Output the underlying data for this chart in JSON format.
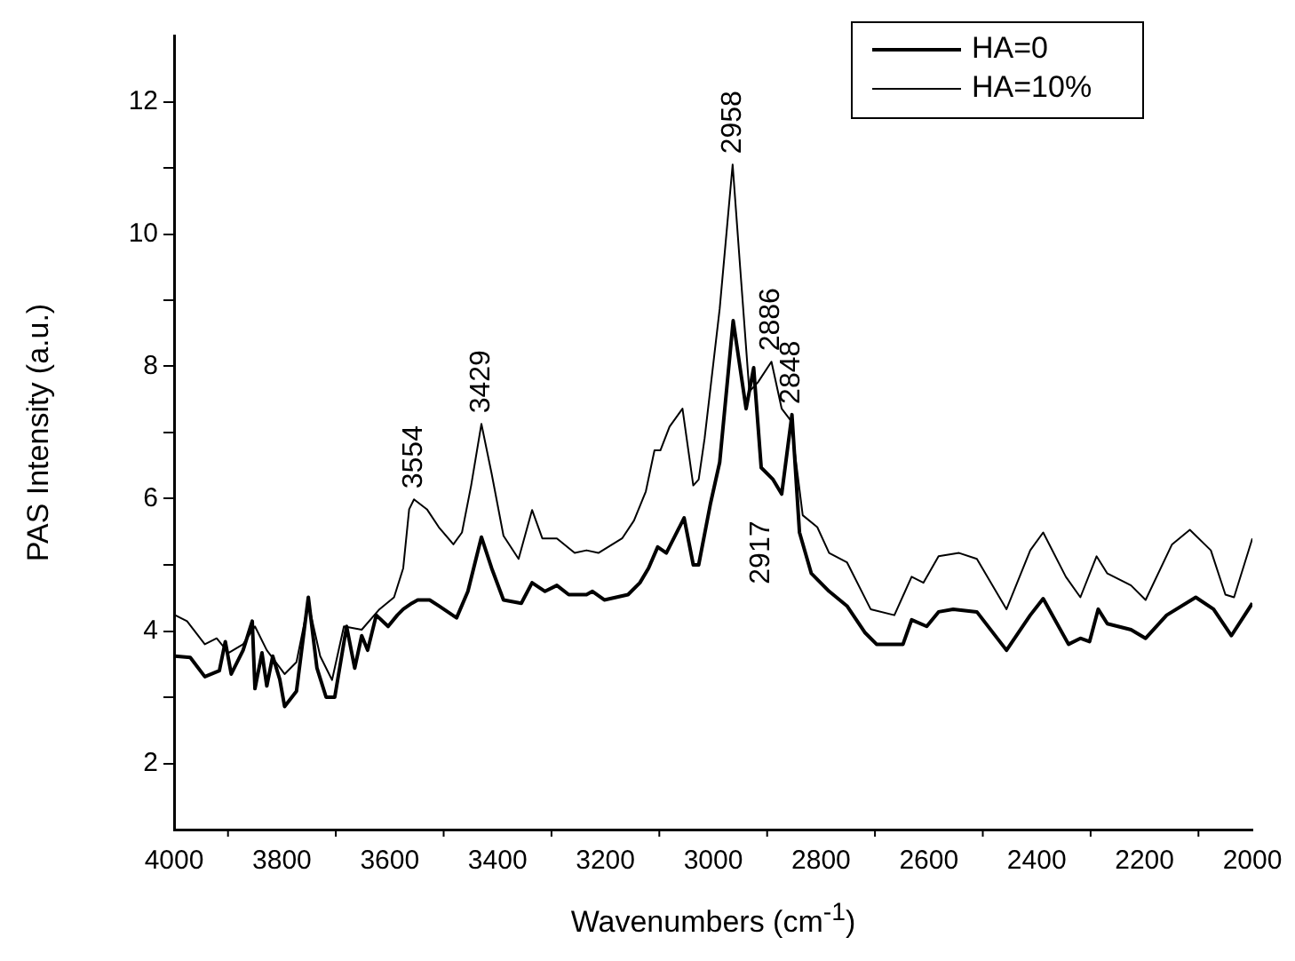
{
  "chart_data": {
    "type": "line",
    "xlabel": "Wavenumbers (cm$^{-1}$)",
    "ylabel": "PAS Intensity (a.u.)",
    "xlim": [
      4000,
      2000
    ],
    "xticks": [
      4000,
      {
        "value": 3900,
        "label": null
      },
      3800,
      {
        "value": 3700,
        "label": null
      },
      3600,
      {
        "value": 3500,
        "label": null
      },
      3400,
      {
        "value": 3300,
        "label": null
      },
      3200,
      {
        "value": 3100,
        "label": null
      },
      3000,
      {
        "value": 2900,
        "label": null
      },
      2800,
      {
        "value": 2700,
        "label": null
      },
      2600,
      {
        "value": 2500,
        "label": null
      },
      2400,
      {
        "value": 2300,
        "label": null
      },
      2200,
      {
        "value": 2100,
        "label": null
      },
      2000
    ],
    "ylim": [
      1,
      13
    ],
    "yticks": [
      2,
      {
        "value": 3,
        "label": null
      },
      4,
      {
        "value": 5,
        "label": null
      },
      6,
      {
        "value": 7,
        "label": null
      },
      8,
      {
        "value": 9,
        "label": null
      },
      10,
      {
        "value": 11,
        "label": null
      },
      12
    ],
    "grid": false,
    "legend": "top right",
    "marker": "none",
    "line_style": "solid",
    "series": [
      {
        "name": "HA=0",
        "color": "#000000",
        "x": [
          3998,
          3970,
          3943,
          3916,
          3905,
          3894,
          3872,
          3855,
          3850,
          3837,
          3828,
          3817,
          3804,
          3795,
          3773,
          3751,
          3735,
          3718,
          3702,
          3680,
          3665,
          3652,
          3641,
          3625,
          3603,
          3586,
          3575,
          3559,
          3548,
          3526,
          3509,
          3476,
          3455,
          3430,
          3411,
          3389,
          3356,
          3336,
          3312,
          3290,
          3268,
          3235,
          3224,
          3202,
          3158,
          3136,
          3120,
          3103,
          3087,
          3054,
          3037,
          3027,
          3005,
          2988,
          2963,
          2939,
          2925,
          2911,
          2889,
          2873,
          2854,
          2840,
          2818,
          2785,
          2752,
          2719,
          2697,
          2648,
          2632,
          2604,
          2582,
          2555,
          2511,
          2456,
          2412,
          2388,
          2341,
          2319,
          2302,
          2286,
          2269,
          2225,
          2198,
          2159,
          2105,
          2072,
          2039,
          2000
        ],
        "values": [
          3.62,
          3.6,
          3.31,
          3.4,
          3.84,
          3.35,
          3.71,
          4.15,
          3.13,
          3.67,
          3.17,
          3.62,
          3.27,
          2.86,
          3.09,
          4.51,
          3.44,
          3.0,
          3.0,
          4.07,
          3.44,
          3.93,
          3.71,
          4.24,
          4.07,
          4.24,
          4.33,
          4.42,
          4.47,
          4.47,
          4.38,
          4.2,
          4.6,
          5.42,
          4.95,
          4.47,
          4.42,
          4.73,
          4.6,
          4.69,
          4.55,
          4.55,
          4.6,
          4.47,
          4.55,
          4.73,
          4.95,
          5.27,
          5.18,
          5.71,
          5.0,
          5.0,
          5.93,
          6.55,
          8.69,
          7.36,
          7.98,
          6.47,
          6.29,
          6.07,
          7.27,
          5.49,
          4.87,
          4.6,
          4.38,
          3.98,
          3.8,
          3.8,
          4.17,
          4.07,
          4.29,
          4.33,
          4.29,
          3.71,
          4.24,
          4.49,
          3.8,
          3.89,
          3.84,
          4.33,
          4.11,
          4.02,
          3.89,
          4.24,
          4.51,
          4.33,
          3.93,
          4.42
        ]
      },
      {
        "name": "HA=10%",
        "color": "#000000",
        "x": [
          3998,
          3976,
          3943,
          3921,
          3899,
          3872,
          3850,
          3828,
          3795,
          3773,
          3751,
          3729,
          3707,
          3685,
          3652,
          3619,
          3592,
          3575,
          3564,
          3555,
          3531,
          3509,
          3482,
          3466,
          3449,
          3430,
          3411,
          3389,
          3361,
          3336,
          3317,
          3290,
          3257,
          3235,
          3213,
          3169,
          3147,
          3125,
          3109,
          3098,
          3081,
          3057,
          3037,
          3027,
          3016,
          2988,
          2964,
          2950,
          2933,
          2917,
          2892,
          2873,
          2856,
          2834,
          2807,
          2785,
          2752,
          2708,
          2664,
          2632,
          2610,
          2582,
          2544,
          2511,
          2456,
          2412,
          2388,
          2346,
          2319,
          2289,
          2269,
          2225,
          2198,
          2149,
          2116,
          2077,
          2050,
          2034,
          2000
        ],
        "values": [
          4.24,
          4.15,
          3.8,
          3.89,
          3.67,
          3.8,
          4.07,
          3.71,
          3.35,
          3.53,
          4.42,
          3.62,
          3.26,
          4.07,
          4.02,
          4.33,
          4.51,
          4.95,
          5.84,
          5.99,
          5.84,
          5.57,
          5.31,
          5.49,
          6.2,
          7.13,
          6.38,
          5.44,
          5.09,
          5.83,
          5.4,
          5.4,
          5.18,
          5.22,
          5.18,
          5.4,
          5.67,
          6.11,
          6.73,
          6.73,
          7.09,
          7.36,
          6.2,
          6.29,
          6.91,
          8.87,
          11.05,
          9.49,
          7.62,
          7.76,
          8.07,
          7.36,
          7.18,
          5.75,
          5.57,
          5.18,
          5.04,
          4.33,
          4.24,
          4.82,
          4.73,
          5.13,
          5.18,
          5.09,
          4.33,
          5.22,
          5.49,
          4.82,
          4.51,
          5.13,
          4.87,
          4.69,
          4.47,
          5.31,
          5.53,
          5.22,
          4.55,
          4.51,
          5.4
        ]
      }
    ],
    "annotations": [
      {
        "text": "3554",
        "x": 3555,
        "y": 5.99
      },
      {
        "text": "3429",
        "x": 3430,
        "y": 7.13
      },
      {
        "text": "2958",
        "x": 2964,
        "y": 11.05
      },
      {
        "text": "2886",
        "x": 2892,
        "y": 8.07
      },
      {
        "text": "2917",
        "x": 2911,
        "y": 6.47
      },
      {
        "text": "2848",
        "x": 2854,
        "y": 7.27
      }
    ]
  }
}
